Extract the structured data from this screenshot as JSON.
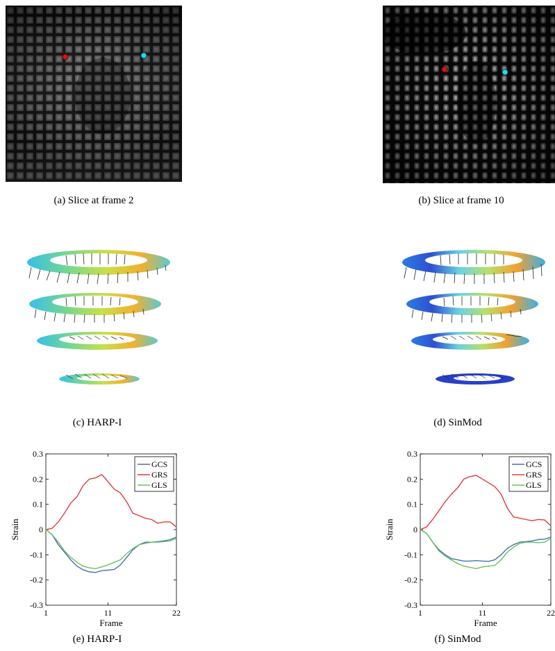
{
  "panels": {
    "a": {
      "caption": "(a) Slice at frame 2"
    },
    "b": {
      "caption": "(b) Slice at frame 10"
    },
    "c": {
      "caption": "(c) HARP-I"
    },
    "d": {
      "caption": "(d) SinMod"
    },
    "e": {
      "caption": "(e) HARP-I"
    },
    "f": {
      "caption": "(f) SinMod"
    }
  },
  "marker_colors": {
    "red": "#e01010",
    "cyan": "#22d8ee"
  },
  "chart_data": [
    {
      "type": "line",
      "panel": "e",
      "xlabel": "Frame",
      "ylabel": "Strain",
      "xlim": [
        1,
        22
      ],
      "ylim": [
        -0.3,
        0.3
      ],
      "xticks": [
        1,
        11,
        22
      ],
      "yticks": [
        -0.3,
        -0.2,
        -0.1,
        0,
        0.1,
        0.2,
        0.3
      ],
      "x": [
        1,
        2,
        3,
        4,
        5,
        6,
        7,
        8,
        9,
        10,
        11,
        12,
        13,
        14,
        15,
        16,
        17,
        18,
        19,
        20,
        21,
        22
      ],
      "legend_position": "top-right",
      "series": [
        {
          "name": "GCS",
          "color": "#4472b4",
          "values": [
            0,
            -0.02,
            -0.06,
            -0.09,
            -0.12,
            -0.145,
            -0.16,
            -0.168,
            -0.17,
            -0.163,
            -0.161,
            -0.158,
            -0.14,
            -0.11,
            -0.08,
            -0.06,
            -0.05,
            -0.05,
            -0.048,
            -0.045,
            -0.04,
            -0.03
          ]
        },
        {
          "name": "GRS",
          "color": "#e03c3c",
          "values": [
            0,
            0.005,
            0.03,
            0.065,
            0.105,
            0.13,
            0.175,
            0.2,
            0.205,
            0.218,
            0.19,
            0.16,
            0.145,
            0.11,
            0.065,
            0.055,
            0.045,
            0.04,
            0.025,
            0.03,
            0.03,
            0.01
          ]
        },
        {
          "name": "GLS",
          "color": "#6abf5a",
          "values": [
            0,
            -0.02,
            -0.05,
            -0.085,
            -0.11,
            -0.13,
            -0.145,
            -0.152,
            -0.155,
            -0.148,
            -0.14,
            -0.13,
            -0.12,
            -0.095,
            -0.075,
            -0.06,
            -0.055,
            -0.05,
            -0.05,
            -0.048,
            -0.045,
            -0.035
          ]
        }
      ]
    },
    {
      "type": "line",
      "panel": "f",
      "xlabel": "Frame",
      "ylabel": "Strain",
      "xlim": [
        1,
        22
      ],
      "ylim": [
        -0.3,
        0.3
      ],
      "xticks": [
        1,
        11,
        22
      ],
      "yticks": [
        -0.3,
        -0.2,
        -0.1,
        0,
        0.1,
        0.2,
        0.3
      ],
      "x": [
        1,
        2,
        3,
        4,
        5,
        6,
        7,
        8,
        9,
        10,
        11,
        12,
        13,
        14,
        15,
        16,
        17,
        18,
        19,
        20,
        21,
        22
      ],
      "legend_position": "top-right",
      "series": [
        {
          "name": "GCS",
          "color": "#4472b4",
          "values": [
            0,
            -0.015,
            -0.05,
            -0.08,
            -0.1,
            -0.115,
            -0.12,
            -0.125,
            -0.125,
            -0.123,
            -0.125,
            -0.126,
            -0.12,
            -0.1,
            -0.075,
            -0.06,
            -0.05,
            -0.048,
            -0.045,
            -0.04,
            -0.038,
            -0.03
          ]
        },
        {
          "name": "GRS",
          "color": "#e03c3c",
          "values": [
            0,
            0.01,
            0.04,
            0.075,
            0.11,
            0.14,
            0.165,
            0.2,
            0.21,
            0.215,
            0.2,
            0.185,
            0.17,
            0.14,
            0.085,
            0.05,
            0.045,
            0.04,
            0.035,
            0.04,
            0.038,
            0.015
          ]
        },
        {
          "name": "GLS",
          "color": "#6abf5a",
          "values": [
            0,
            -0.015,
            -0.05,
            -0.085,
            -0.105,
            -0.12,
            -0.135,
            -0.145,
            -0.15,
            -0.155,
            -0.148,
            -0.145,
            -0.142,
            -0.12,
            -0.09,
            -0.07,
            -0.055,
            -0.05,
            -0.05,
            -0.052,
            -0.05,
            -0.035
          ]
        }
      ]
    }
  ]
}
